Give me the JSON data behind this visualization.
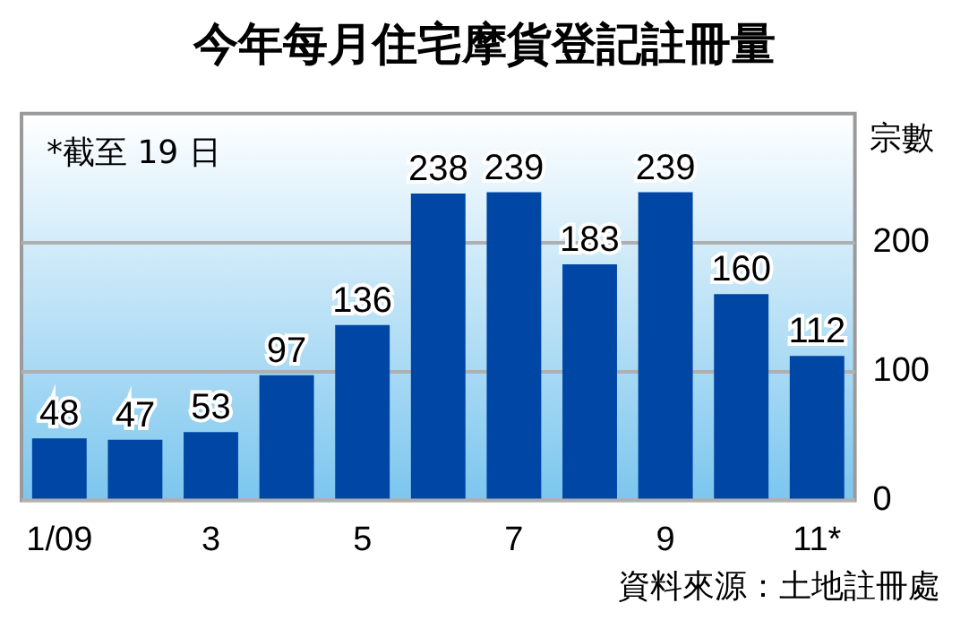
{
  "chart_data": {
    "type": "bar",
    "title": "今年每月住宅摩貨登記註冊量",
    "ylabel": "宗數",
    "categories": [
      "1/09",
      null,
      "3",
      null,
      "5",
      null,
      "7",
      null,
      "9",
      null,
      "11*"
    ],
    "values": [
      48,
      47,
      53,
      97,
      136,
      238,
      239,
      183,
      239,
      160,
      112
    ],
    "color": "#0047a5",
    "ylim": [
      0,
      300
    ],
    "yticks": [
      0,
      100,
      200
    ],
    "grid": "y",
    "data_labels": true,
    "annotations": [
      "*截至 19 日",
      "資料來源：土地註冊處"
    ]
  }
}
